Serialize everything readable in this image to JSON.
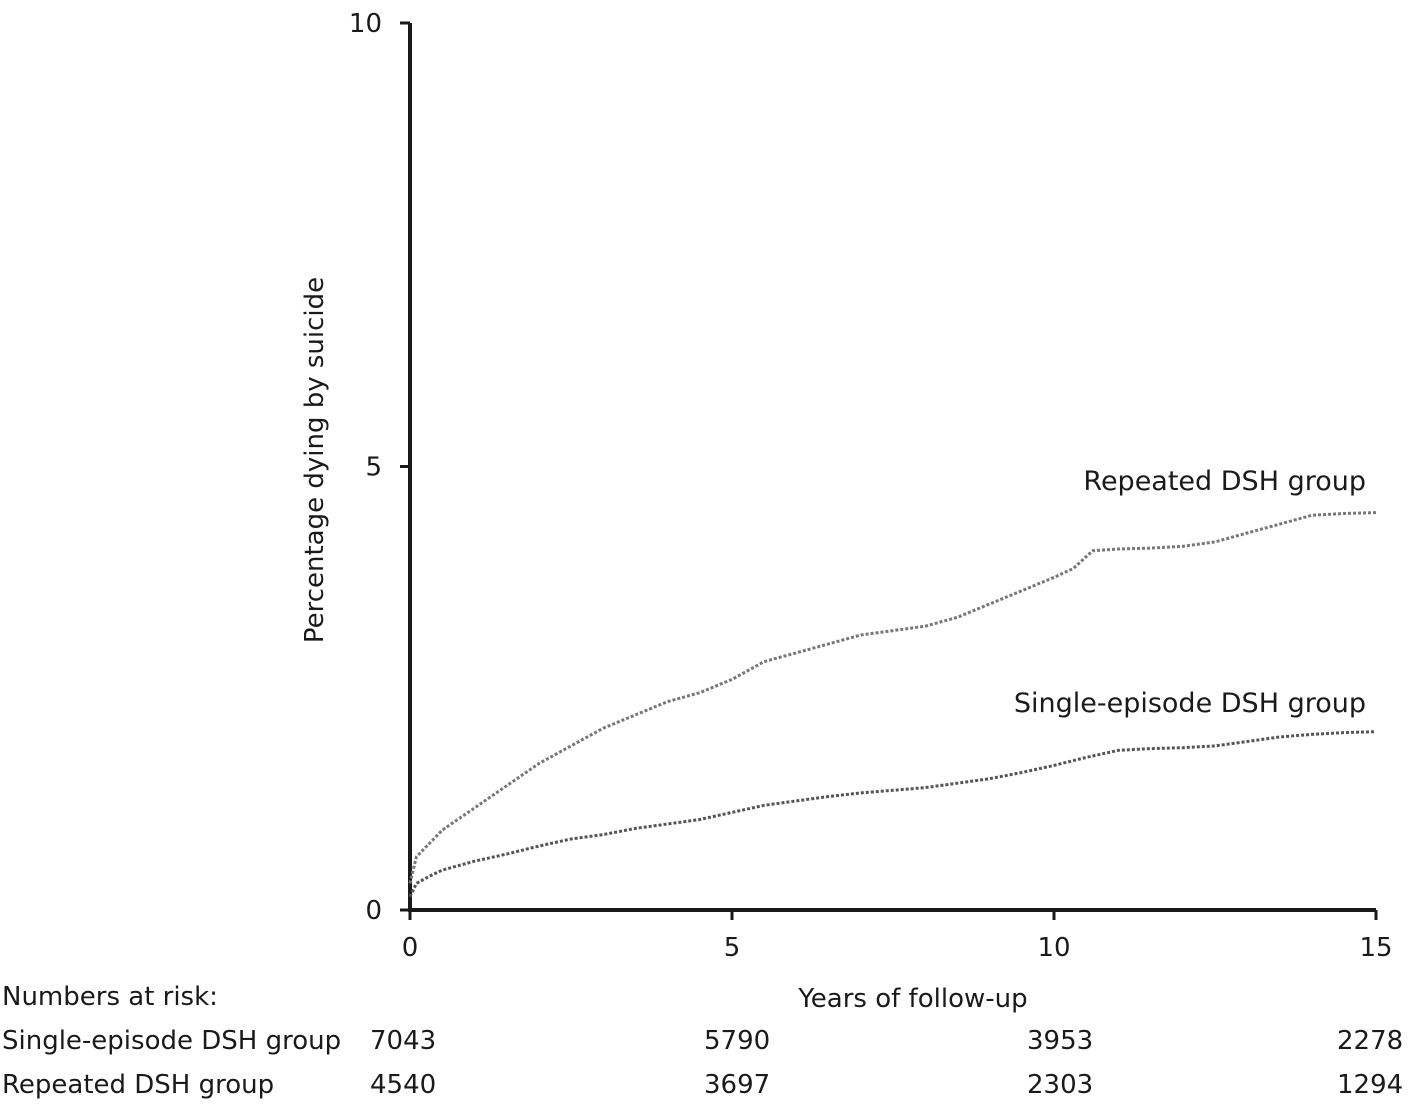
{
  "chart_data": {
    "type": "line",
    "title": "",
    "xlabel": "Years of follow-up",
    "ylabel": "Percentage dying by suicide",
    "xlim": [
      0,
      15
    ],
    "ylim": [
      0,
      10
    ],
    "x_ticks": [
      "0",
      "5",
      "10",
      "15"
    ],
    "y_ticks": [
      "0",
      "5",
      "10"
    ],
    "grid": false,
    "series": [
      {
        "name": "Repeated DSH group",
        "color": "#777777",
        "line_style": "dotted",
        "points": [
          [
            0,
            0.3
          ],
          [
            0.1,
            0.6
          ],
          [
            0.3,
            0.75
          ],
          [
            0.5,
            0.9
          ],
          [
            1,
            1.15
          ],
          [
            1.5,
            1.4
          ],
          [
            2,
            1.65
          ],
          [
            2.5,
            1.85
          ],
          [
            3,
            2.05
          ],
          [
            3.5,
            2.2
          ],
          [
            4,
            2.35
          ],
          [
            4.5,
            2.45
          ],
          [
            5,
            2.6
          ],
          [
            5.5,
            2.8
          ],
          [
            6,
            2.9
          ],
          [
            6.5,
            3.0
          ],
          [
            7,
            3.1
          ],
          [
            7.5,
            3.15
          ],
          [
            8,
            3.2
          ],
          [
            8.5,
            3.3
          ],
          [
            9,
            3.45
          ],
          [
            9.5,
            3.6
          ],
          [
            10,
            3.75
          ],
          [
            10.3,
            3.85
          ],
          [
            10.6,
            4.05
          ],
          [
            11,
            4.07
          ],
          [
            11.5,
            4.08
          ],
          [
            12,
            4.1
          ],
          [
            12.5,
            4.15
          ],
          [
            13,
            4.25
          ],
          [
            13.5,
            4.35
          ],
          [
            14,
            4.45
          ],
          [
            14.5,
            4.47
          ],
          [
            15,
            4.48
          ]
        ]
      },
      {
        "name": "Single-episode DSH group",
        "color": "#555555",
        "line_style": "dotted",
        "points": [
          [
            0,
            0.15
          ],
          [
            0.1,
            0.3
          ],
          [
            0.3,
            0.38
          ],
          [
            0.5,
            0.45
          ],
          [
            1,
            0.55
          ],
          [
            1.5,
            0.63
          ],
          [
            2,
            0.72
          ],
          [
            2.5,
            0.8
          ],
          [
            3,
            0.85
          ],
          [
            3.5,
            0.92
          ],
          [
            4,
            0.97
          ],
          [
            4.5,
            1.02
          ],
          [
            5,
            1.1
          ],
          [
            5.5,
            1.18
          ],
          [
            6,
            1.23
          ],
          [
            6.5,
            1.28
          ],
          [
            7,
            1.32
          ],
          [
            7.5,
            1.35
          ],
          [
            8,
            1.38
          ],
          [
            8.5,
            1.43
          ],
          [
            9,
            1.48
          ],
          [
            9.5,
            1.55
          ],
          [
            10,
            1.63
          ],
          [
            10.5,
            1.72
          ],
          [
            11,
            1.8
          ],
          [
            11.5,
            1.82
          ],
          [
            12,
            1.83
          ],
          [
            12.5,
            1.85
          ],
          [
            13,
            1.9
          ],
          [
            13.5,
            1.95
          ],
          [
            14,
            1.98
          ],
          [
            14.5,
            2.0
          ],
          [
            15,
            2.01
          ]
        ]
      }
    ],
    "annotations": [
      "Repeated DSH group",
      "Single-episode DSH group"
    ]
  },
  "risk_table": {
    "heading": "Numbers at risk:",
    "rows": [
      {
        "label": "Single-episode DSH group",
        "values": [
          "7043",
          "5790",
          "3953",
          "2278"
        ]
      },
      {
        "label": "Repeated DSH group",
        "values": [
          "4540",
          "3697",
          "2303",
          "1294"
        ]
      }
    ]
  }
}
